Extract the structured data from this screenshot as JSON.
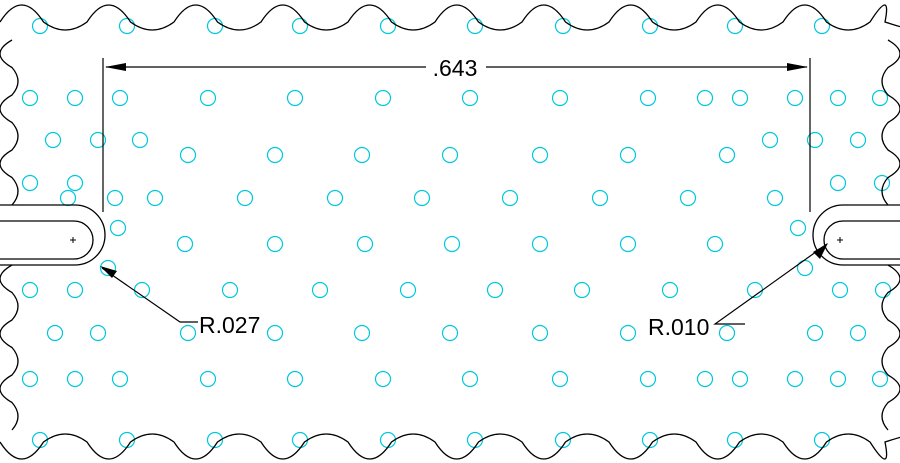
{
  "dimensions": {
    "width_label": ".643",
    "radius_left": "R.027",
    "radius_right": "R.010"
  },
  "colors": {
    "outline": "#000000",
    "perforation": "#00c8dc",
    "background": "#ffffff"
  }
}
